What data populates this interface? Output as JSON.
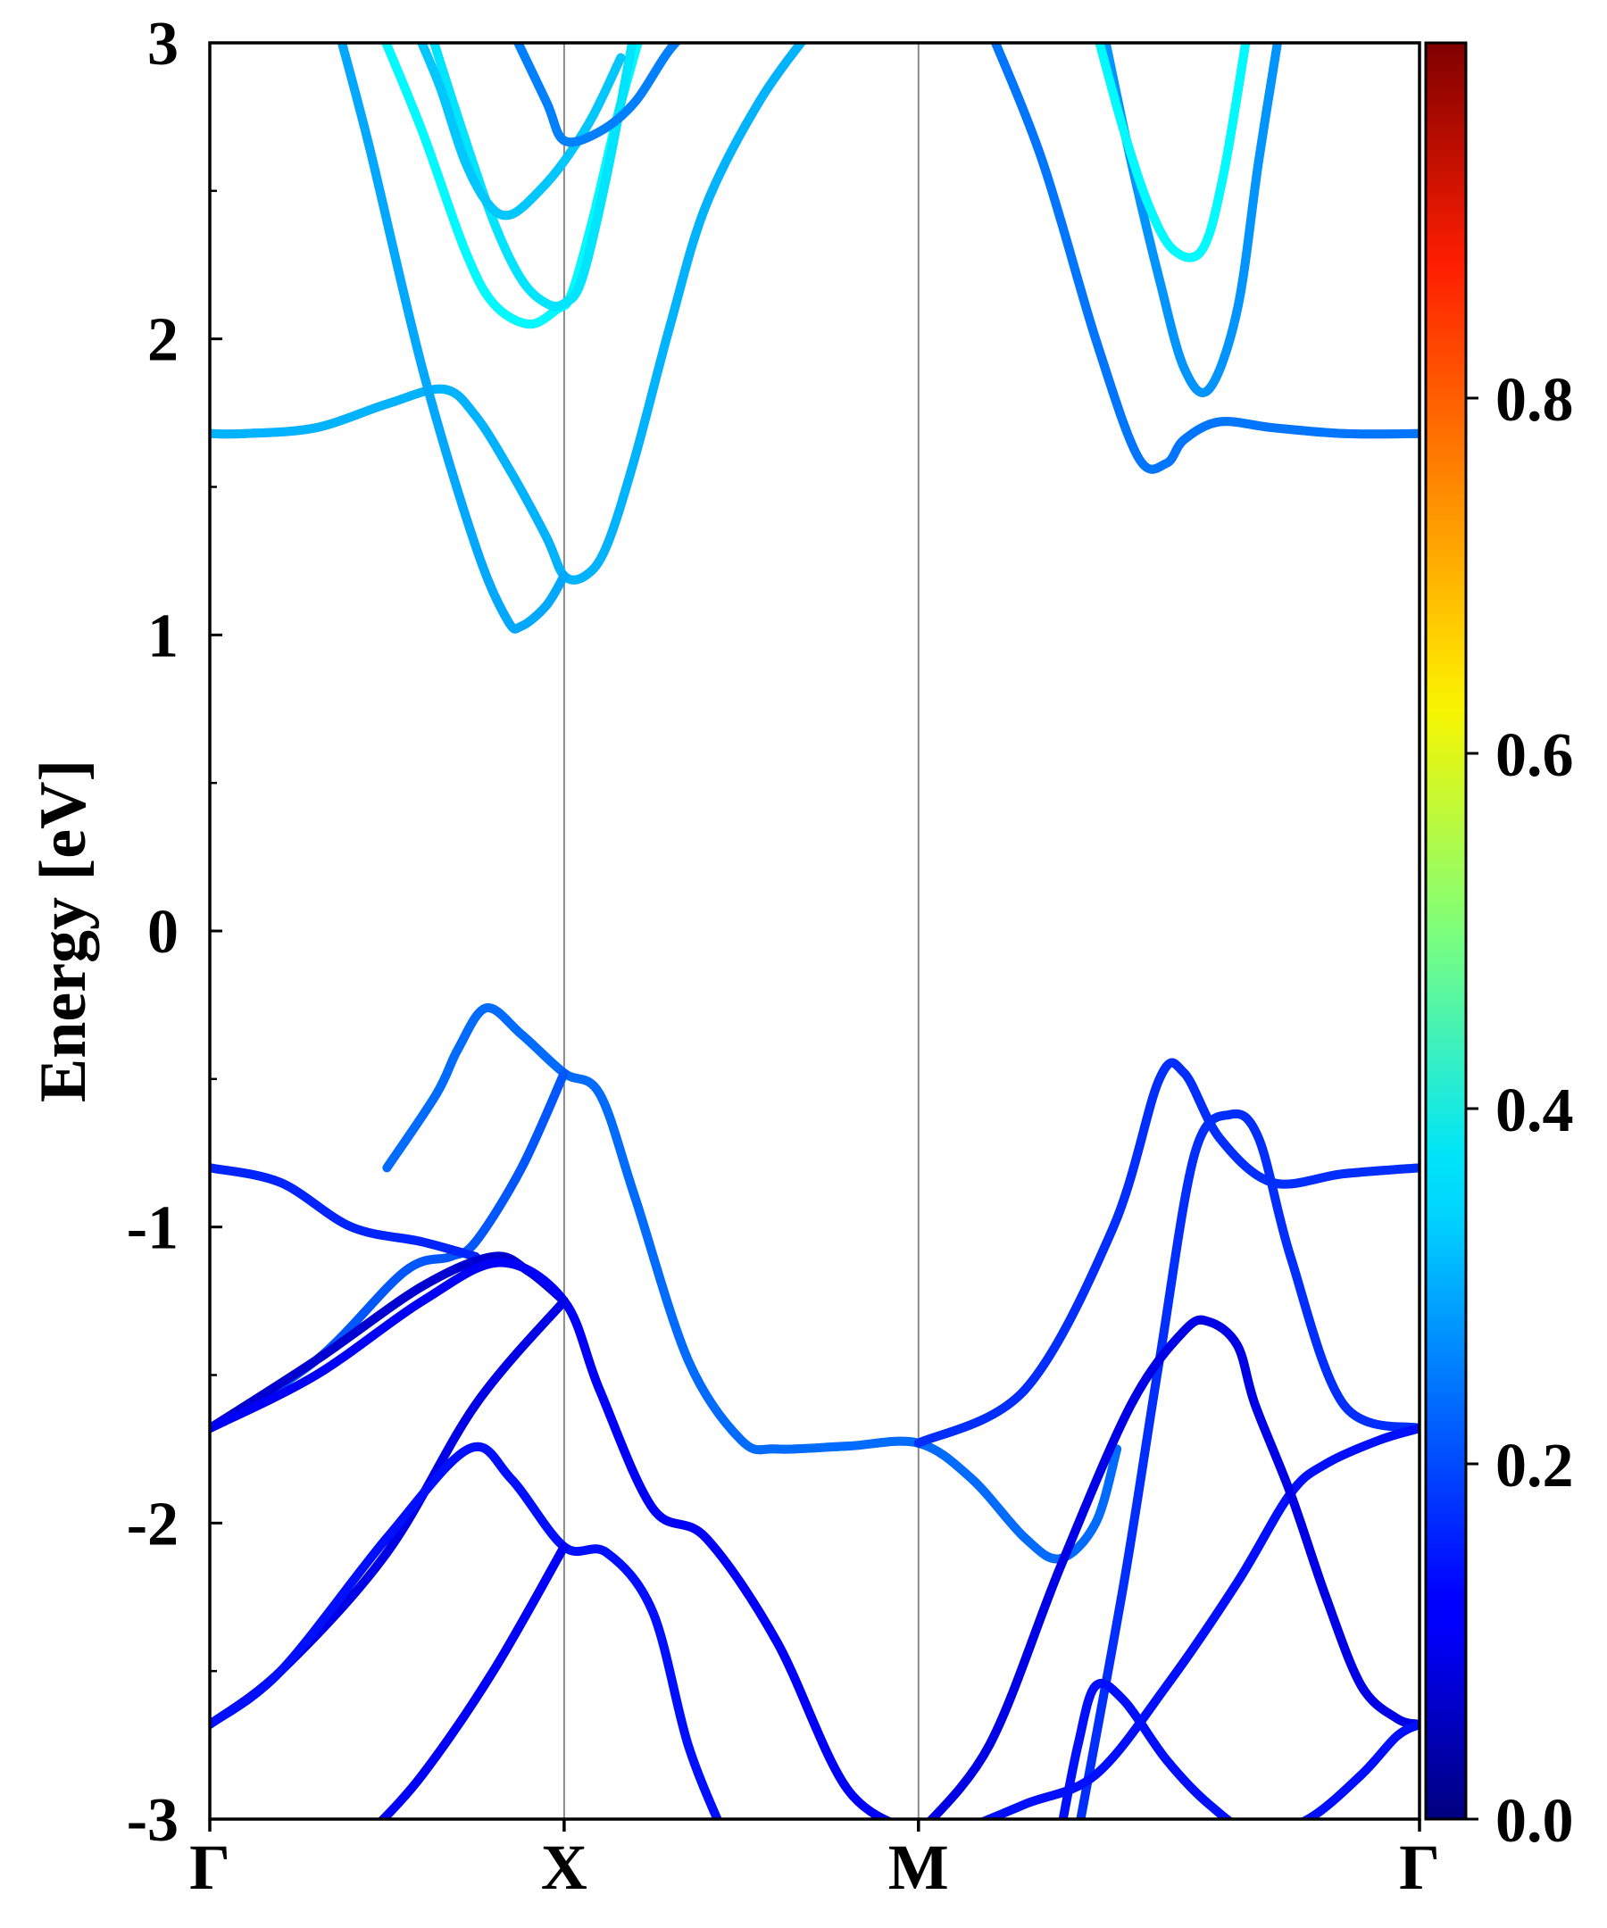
{
  "chart_data": {
    "type": "line",
    "title": "",
    "xlabel": "",
    "ylabel": "Energy [eV]",
    "ylim": [
      -3,
      3
    ],
    "yticks": [
      3,
      2,
      1,
      0,
      -1,
      -2,
      -3
    ],
    "ytick_labels": [
      "3",
      "2",
      "1",
      "0",
      "-1",
      "-2",
      "-3"
    ],
    "kpath": [
      {
        "label": "Γ",
        "pos": 0.0
      },
      {
        "label": "X",
        "pos": 1.0
      },
      {
        "label": "M",
        "pos": 2.0
      },
      {
        "label": "Γ",
        "pos": 3.414
      }
    ],
    "grid": false,
    "vertical_lines_at": [
      1.0,
      2.0
    ],
    "colorbar": {
      "colormap": "jet",
      "range": [
        0.0,
        1.0
      ],
      "ticks": [
        0.0,
        0.2,
        0.4,
        0.6,
        0.8
      ],
      "tick_labels": [
        "0.0",
        "0.2",
        "0.4",
        "0.6",
        "0.8"
      ]
    },
    "series": [
      {
        "weight": 0.3,
        "x": [
          0,
          0.1,
          0.3,
          0.5,
          0.66,
          0.75,
          0.85,
          0.95,
          1.0,
          1.06,
          1.12,
          1.2,
          1.3,
          1.4,
          1.55,
          1.7
        ],
        "y": [
          1.68,
          1.68,
          1.7,
          1.78,
          1.83,
          1.74,
          1.55,
          1.33,
          1.2,
          1.2,
          1.3,
          1.6,
          2.05,
          2.45,
          2.8,
          3.05
        ]
      },
      {
        "weight": 0.29,
        "x": [
          0.35,
          0.45,
          0.6,
          0.75,
          0.84,
          0.88,
          0.95,
          1.0
        ],
        "y": [
          3.1,
          2.65,
          1.9,
          1.3,
          1.05,
          1.03,
          1.1,
          1.2
        ]
      },
      {
        "weight": 0.37,
        "x": [
          0.48,
          0.6,
          0.72,
          0.8,
          0.9,
          0.98,
          1.02,
          1.08,
          1.15,
          1.22
        ],
        "y": [
          3.05,
          2.7,
          2.3,
          2.12,
          2.05,
          2.1,
          2.15,
          2.4,
          2.75,
          3.05
        ]
      },
      {
        "weight": 0.35,
        "x": [
          0.62,
          0.7,
          0.8,
          0.88,
          0.95,
          1.0,
          1.05,
          1.12,
          1.2
        ],
        "y": [
          3.05,
          2.75,
          2.4,
          2.2,
          2.12,
          2.12,
          2.2,
          2.55,
          3.05
        ]
      },
      {
        "weight": 0.32,
        "x": [
          0.58,
          0.65,
          0.72,
          0.79,
          0.85,
          0.93,
          1.0,
          1.08,
          1.16
        ],
        "y": [
          3.05,
          2.85,
          2.6,
          2.45,
          2.42,
          2.5,
          2.6,
          2.75,
          2.95
        ]
      },
      {
        "weight": 0.25,
        "x": [
          0.85,
          0.95,
          1.0,
          1.1,
          1.2,
          1.3,
          1.4
        ],
        "y": [
          3.05,
          2.8,
          2.67,
          2.7,
          2.8,
          2.98,
          3.1
        ]
      },
      {
        "weight": 0.24,
        "x": [
          2.2,
          2.35,
          2.5,
          2.62,
          2.7,
          2.75,
          2.85,
          3.0,
          3.2,
          3.414
        ],
        "y": [
          3.05,
          2.6,
          2.0,
          1.6,
          1.58,
          1.66,
          1.72,
          1.7,
          1.68,
          1.68
        ]
      },
      {
        "weight": 0.27,
        "x": [
          2.52,
          2.6,
          2.68,
          2.75,
          2.82,
          2.9,
          2.96,
          3.02
        ],
        "y": [
          3.05,
          2.6,
          2.2,
          1.9,
          1.83,
          2.1,
          2.6,
          3.05
        ]
      },
      {
        "weight": 0.37,
        "x": [
          2.5,
          2.58,
          2.65,
          2.72,
          2.8,
          2.86,
          2.93
        ],
        "y": [
          3.05,
          2.7,
          2.45,
          2.3,
          2.3,
          2.55,
          3.05
        ]
      },
      {
        "weight": 0.23,
        "x": [
          0.5,
          0.64,
          0.7,
          0.78,
          0.88,
          1.0,
          1.1,
          1.2,
          1.35,
          1.5,
          1.6,
          1.8,
          2.0,
          2.15,
          2.3,
          2.4,
          2.5,
          2.56
        ],
        "y": [
          -0.8,
          -0.55,
          -0.4,
          -0.26,
          -0.35,
          -0.48,
          -0.55,
          -0.9,
          -1.45,
          -1.72,
          -1.75,
          -1.74,
          -1.73,
          -1.85,
          -2.05,
          -2.12,
          -2.0,
          -1.75
        ]
      },
      {
        "weight": 0.21,
        "x": [
          0.0,
          0.3,
          0.55,
          0.68,
          0.75,
          0.88,
          1.0
        ],
        "y": [
          -1.68,
          -1.45,
          -1.15,
          -1.1,
          -1.05,
          -0.8,
          -0.48
        ]
      },
      {
        "weight": 0.16,
        "x": [
          0.0,
          0.2,
          0.4,
          0.6,
          0.75
        ],
        "y": [
          -0.8,
          -0.85,
          -1.0,
          -1.05,
          -1.1
        ]
      },
      {
        "weight": 0.17,
        "x": [
          2.0,
          2.3,
          2.55,
          2.68,
          2.75,
          2.85,
          3.0,
          3.2,
          3.414
        ],
        "y": [
          -1.73,
          -1.55,
          -1.0,
          -0.5,
          -0.48,
          -0.7,
          -0.85,
          -0.82,
          -0.8
        ]
      },
      {
        "weight": 0.17,
        "x": [
          2.45,
          2.58,
          2.68,
          2.78,
          2.88,
          2.96,
          3.05,
          3.2,
          3.414
        ],
        "y": [
          -3.05,
          -2.2,
          -1.45,
          -0.75,
          -0.62,
          -0.7,
          -1.1,
          -1.6,
          -1.68
        ]
      },
      {
        "weight": 0.08,
        "x": [
          0.0,
          0.3,
          0.6,
          0.8,
          0.9,
          1.0
        ],
        "y": [
          -1.68,
          -1.45,
          -1.2,
          -1.1,
          -1.15,
          -1.25
        ]
      },
      {
        "weight": 0.12,
        "x": [
          0.0,
          0.3,
          0.6,
          0.82,
          1.0,
          1.1,
          1.25,
          1.4,
          1.6,
          1.8,
          2.0
        ],
        "y": [
          -1.68,
          -1.5,
          -1.25,
          -1.12,
          -1.25,
          -1.55,
          -1.95,
          -2.05,
          -2.4,
          -2.9,
          -3.05
        ]
      },
      {
        "weight": 0.1,
        "x": [
          0.0,
          0.2,
          0.5,
          0.75,
          1.0
        ],
        "y": [
          -2.68,
          -2.5,
          -2.1,
          -1.6,
          -1.25
        ]
      },
      {
        "weight": 0.14,
        "x": [
          0.0,
          0.2,
          0.5,
          0.73,
          0.85,
          1.0,
          1.12,
          1.25,
          1.35,
          1.45
        ],
        "y": [
          -2.68,
          -2.5,
          -2.05,
          -1.75,
          -1.85,
          -2.08,
          -2.1,
          -2.3,
          -2.75,
          -3.05
        ]
      },
      {
        "weight": 0.12,
        "x": [
          0.45,
          0.6,
          0.8,
          1.0
        ],
        "y": [
          -3.05,
          -2.85,
          -2.5,
          -2.08
        ]
      },
      {
        "weight": 0.14,
        "x": [
          2.1,
          2.3,
          2.5,
          2.7,
          2.9,
          3.05,
          3.15,
          3.3,
          3.414
        ],
        "y": [
          -3.05,
          -2.95,
          -2.85,
          -2.55,
          -2.2,
          -1.9,
          -1.8,
          -1.72,
          -1.68
        ]
      },
      {
        "weight": 0.1,
        "x": [
          2.0,
          2.2,
          2.4,
          2.6,
          2.75,
          2.82,
          2.9,
          2.95,
          3.05,
          3.15,
          3.25,
          3.35,
          3.414
        ],
        "y": [
          -3.05,
          -2.75,
          -2.15,
          -1.6,
          -1.35,
          -1.32,
          -1.4,
          -1.6,
          -1.9,
          -2.25,
          -2.55,
          -2.66,
          -2.68
        ]
      },
      {
        "weight": 0.14,
        "x": [
          2.4,
          2.45,
          2.5,
          2.58,
          2.7,
          2.82,
          2.95,
          3.1,
          3.25,
          3.35,
          3.414
        ],
        "y": [
          -3.05,
          -2.75,
          -2.55,
          -2.6,
          -2.8,
          -2.95,
          -3.05,
          -3.0,
          -2.85,
          -2.72,
          -2.68
        ]
      }
    ]
  }
}
